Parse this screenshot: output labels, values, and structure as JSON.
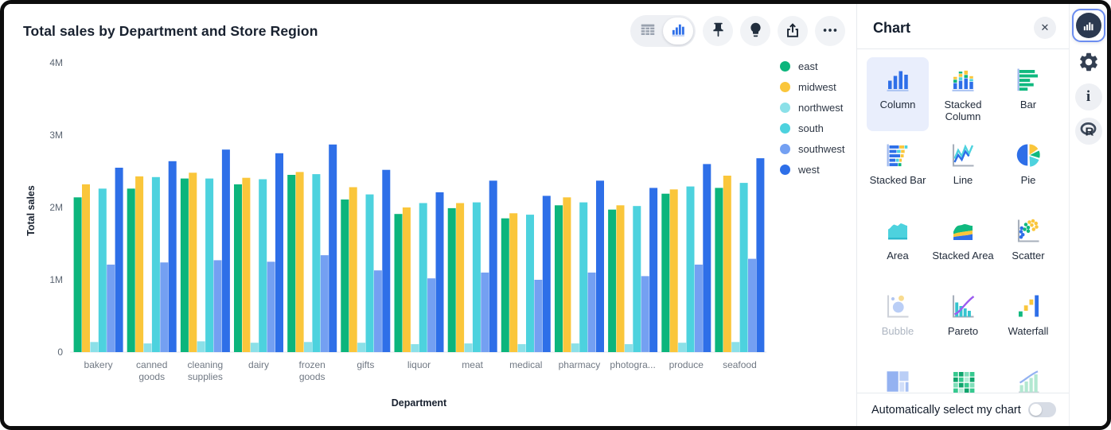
{
  "header": {
    "title": "Total sales by Department and Store Region"
  },
  "toolbar": {
    "view_toggle": {
      "options": [
        "table-view",
        "chart-view"
      ],
      "selected": "chart-view"
    },
    "buttons": [
      "pin",
      "lightbulb",
      "share",
      "more"
    ]
  },
  "chart_data": {
    "type": "bar",
    "title": "Total sales by Department and Store Region",
    "xlabel": "Department",
    "ylabel": "Total sales",
    "ylim": [
      0,
      4000000
    ],
    "yticks": [
      {
        "label": "0",
        "value": 0
      },
      {
        "label": "1M",
        "value": 1
      },
      {
        "label": "2M",
        "value": 2
      },
      {
        "label": "3M",
        "value": 3
      },
      {
        "label": "4M",
        "value": 4
      }
    ],
    "grid": false,
    "legend_position": "right",
    "categories": [
      "bakery",
      "canned goods",
      "cleaning supplies",
      "dairy",
      "frozen goods",
      "gifts",
      "liquor",
      "meat",
      "medical",
      "pharmacy",
      "photogra...",
      "produce",
      "seafood"
    ],
    "series": [
      {
        "name": "east",
        "color": "#0CB57C",
        "values_millions": [
          2.14,
          2.26,
          2.4,
          2.32,
          2.45,
          2.11,
          1.91,
          1.99,
          1.85,
          2.03,
          1.97,
          2.19,
          2.27
        ]
      },
      {
        "name": "midwest",
        "color": "#FAC63B",
        "values_millions": [
          2.32,
          2.43,
          2.48,
          2.41,
          2.49,
          2.28,
          2.0,
          2.06,
          1.92,
          2.14,
          2.03,
          2.25,
          2.44
        ]
      },
      {
        "name": "northwest",
        "color": "#8BE0E8",
        "values_millions": [
          0.14,
          0.12,
          0.15,
          0.13,
          0.14,
          0.13,
          0.11,
          0.12,
          0.11,
          0.12,
          0.11,
          0.13,
          0.14
        ]
      },
      {
        "name": "south",
        "color": "#4DD2DE",
        "values_millions": [
          2.26,
          2.42,
          2.4,
          2.39,
          2.46,
          2.18,
          2.06,
          2.07,
          1.9,
          2.07,
          2.02,
          2.29,
          2.34
        ]
      },
      {
        "name": "southwest",
        "color": "#74A0F2",
        "values_millions": [
          1.21,
          1.24,
          1.27,
          1.25,
          1.34,
          1.13,
          1.02,
          1.1,
          1.0,
          1.1,
          1.05,
          1.21,
          1.29
        ]
      },
      {
        "name": "west",
        "color": "#2E6FE8",
        "values_millions": [
          2.55,
          2.64,
          2.8,
          2.75,
          2.87,
          2.52,
          2.21,
          2.37,
          2.16,
          2.37,
          2.27,
          2.6,
          2.68
        ]
      }
    ]
  },
  "panel": {
    "title": "Chart",
    "close_icon": "✕",
    "types": [
      {
        "label": "Column",
        "icon": "column",
        "state": "selected"
      },
      {
        "label": "Stacked Column",
        "icon": "stacked-column",
        "state": "normal"
      },
      {
        "label": "Bar",
        "icon": "bar",
        "state": "normal"
      },
      {
        "label": "Stacked Bar",
        "icon": "stacked-bar",
        "state": "normal"
      },
      {
        "label": "Line",
        "icon": "line",
        "state": "normal"
      },
      {
        "label": "Pie",
        "icon": "pie",
        "state": "normal"
      },
      {
        "label": "Area",
        "icon": "area",
        "state": "normal"
      },
      {
        "label": "Stacked Area",
        "icon": "stacked-area",
        "state": "normal"
      },
      {
        "label": "Scatter",
        "icon": "scatter",
        "state": "normal"
      },
      {
        "label": "Bubble",
        "icon": "bubble",
        "state": "disabled"
      },
      {
        "label": "Pareto",
        "icon": "pareto",
        "state": "normal"
      },
      {
        "label": "Waterfall",
        "icon": "waterfall",
        "state": "normal"
      },
      {
        "label": "Treemap",
        "icon": "treemap",
        "state": "disabled"
      },
      {
        "label": "Heatmap",
        "icon": "heatmap",
        "state": "normal"
      },
      {
        "label": "Line Column",
        "icon": "line-column",
        "state": "disabled"
      }
    ],
    "footer": {
      "label": "Automatically select my chart",
      "toggle_on": false
    }
  },
  "rail": {
    "items": [
      "chart-panel",
      "settings",
      "info",
      "r-analysis"
    ],
    "active": "chart-panel",
    "info_glyph": "i"
  },
  "colors": {
    "accent_blue": "#2E6FE8",
    "selected_tile_bg": "#E9EEFC",
    "icon_dark": "#222F3E"
  }
}
